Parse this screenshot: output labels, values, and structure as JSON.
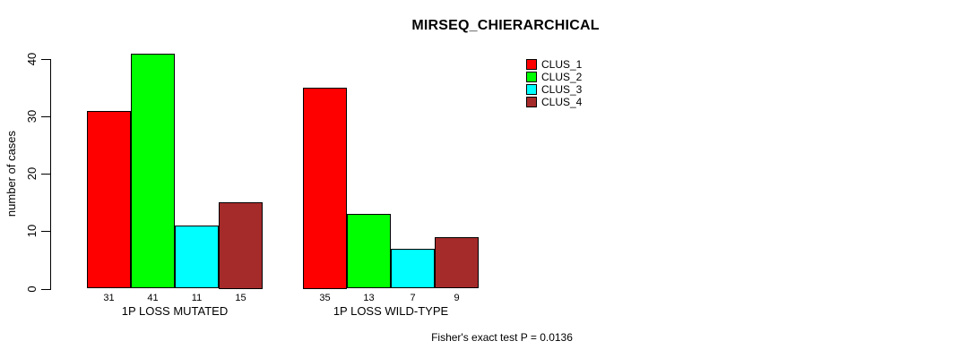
{
  "chart_data": {
    "type": "bar",
    "title": "MIRSEQ_CHIERARCHICAL",
    "ylabel": "number of cases",
    "xlabel": "",
    "ylim": [
      0,
      40
    ],
    "yticks": [
      0,
      10,
      20,
      30,
      40
    ],
    "grid": false,
    "legend_position": "top-right",
    "bar_value_labels": true,
    "categories": [
      "1P LOSS MUTATED",
      "1P LOSS WILD-TYPE"
    ],
    "series": [
      {
        "name": "CLUS_1",
        "color": "#FF0000",
        "values": [
          31,
          35
        ]
      },
      {
        "name": "CLUS_2",
        "color": "#00FF00",
        "values": [
          41,
          13
        ]
      },
      {
        "name": "CLUS_3",
        "color": "#00FFFF",
        "values": [
          11,
          7
        ]
      },
      {
        "name": "CLUS_4",
        "color": "#A52A2A",
        "values": [
          15,
          9
        ]
      }
    ],
    "annotation": "Fisher's exact test P = 0.0136",
    "axis_color": "#000000",
    "background": "#FFFFFF"
  }
}
